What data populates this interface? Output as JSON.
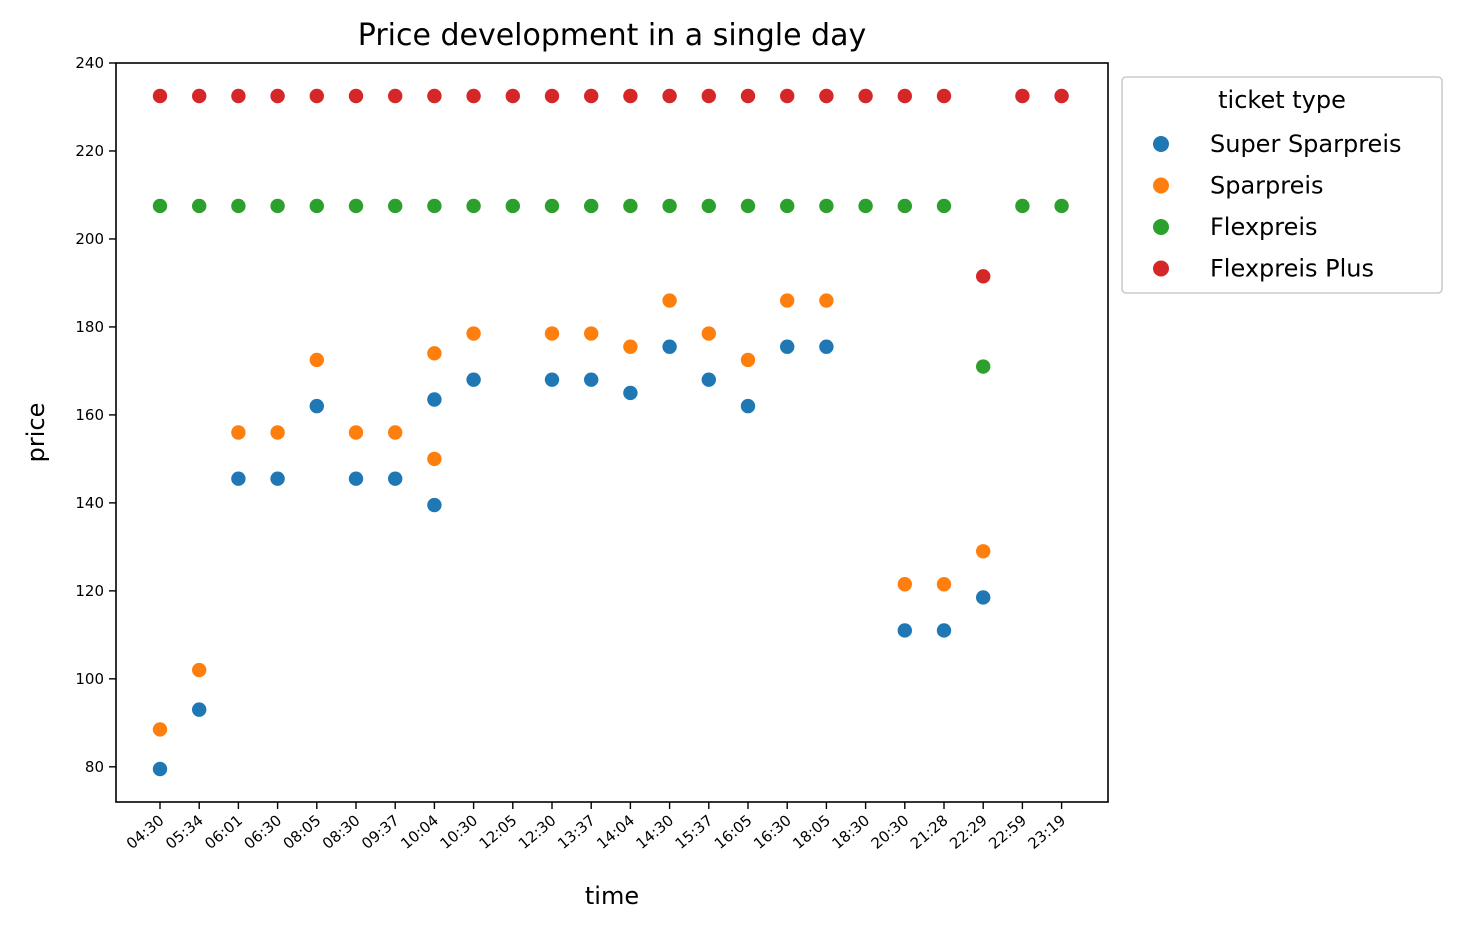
{
  "chart_data": {
    "type": "scatter",
    "title": "Price development in a single day",
    "xlabel": "time",
    "ylabel": "price",
    "ylim": [
      72,
      240
    ],
    "yticks": [
      80,
      100,
      120,
      140,
      160,
      180,
      200,
      220,
      240
    ],
    "grid": false,
    "legend": {
      "title": "ticket type",
      "placement": "outside-top-right"
    },
    "categories": [
      "04:30",
      "05:34",
      "06:01",
      "06:30",
      "08:05",
      "08:30",
      "09:37",
      "10:04",
      "10:30",
      "12:05",
      "12:30",
      "13:37",
      "14:04",
      "14:30",
      "15:37",
      "16:05",
      "16:30",
      "18:05",
      "18:30",
      "20:30",
      "21:28",
      "22:29",
      "22:59",
      "23:19"
    ],
    "series": [
      {
        "name": "Super Sparpreis",
        "color": "#1f77b4",
        "points": [
          {
            "x": "04:30",
            "y": 79.5
          },
          {
            "x": "05:34",
            "y": 93
          },
          {
            "x": "06:01",
            "y": 145.5
          },
          {
            "x": "06:30",
            "y": 145.5
          },
          {
            "x": "08:05",
            "y": 162
          },
          {
            "x": "08:30",
            "y": 145.5
          },
          {
            "x": "09:37",
            "y": 145.5
          },
          {
            "x": "10:04",
            "y": 163.5
          },
          {
            "x": "10:04",
            "y": 139.5
          },
          {
            "x": "10:30",
            "y": 168
          },
          {
            "x": "12:30",
            "y": 168
          },
          {
            "x": "13:37",
            "y": 168
          },
          {
            "x": "14:04",
            "y": 165
          },
          {
            "x": "14:30",
            "y": 175.5
          },
          {
            "x": "15:37",
            "y": 168
          },
          {
            "x": "16:05",
            "y": 162
          },
          {
            "x": "16:30",
            "y": 175.5
          },
          {
            "x": "18:05",
            "y": 175.5
          },
          {
            "x": "20:30",
            "y": 111
          },
          {
            "x": "21:28",
            "y": 111
          },
          {
            "x": "22:29",
            "y": 118.5
          }
        ]
      },
      {
        "name": "Sparpreis",
        "color": "#ff7f0e",
        "points": [
          {
            "x": "04:30",
            "y": 88.5
          },
          {
            "x": "05:34",
            "y": 102
          },
          {
            "x": "06:01",
            "y": 156
          },
          {
            "x": "06:30",
            "y": 156
          },
          {
            "x": "08:05",
            "y": 172.5
          },
          {
            "x": "08:30",
            "y": 156
          },
          {
            "x": "09:37",
            "y": 156
          },
          {
            "x": "10:04",
            "y": 174
          },
          {
            "x": "10:04",
            "y": 150
          },
          {
            "x": "10:30",
            "y": 178.5
          },
          {
            "x": "12:30",
            "y": 178.5
          },
          {
            "x": "13:37",
            "y": 178.5
          },
          {
            "x": "14:04",
            "y": 175.5
          },
          {
            "x": "14:30",
            "y": 186
          },
          {
            "x": "15:37",
            "y": 178.5
          },
          {
            "x": "16:05",
            "y": 172.5
          },
          {
            "x": "16:30",
            "y": 186
          },
          {
            "x": "18:05",
            "y": 186
          },
          {
            "x": "20:30",
            "y": 121.5
          },
          {
            "x": "21:28",
            "y": 121.5
          },
          {
            "x": "22:29",
            "y": 129
          }
        ]
      },
      {
        "name": "Flexpreis",
        "color": "#2ca02c",
        "points": [
          {
            "x": "04:30",
            "y": 207.5
          },
          {
            "x": "05:34",
            "y": 207.5
          },
          {
            "x": "06:01",
            "y": 207.5
          },
          {
            "x": "06:30",
            "y": 207.5
          },
          {
            "x": "08:05",
            "y": 207.5
          },
          {
            "x": "08:30",
            "y": 207.5
          },
          {
            "x": "09:37",
            "y": 207.5
          },
          {
            "x": "10:04",
            "y": 207.5
          },
          {
            "x": "10:30",
            "y": 207.5
          },
          {
            "x": "12:05",
            "y": 207.5
          },
          {
            "x": "12:30",
            "y": 207.5
          },
          {
            "x": "13:37",
            "y": 207.5
          },
          {
            "x": "14:04",
            "y": 207.5
          },
          {
            "x": "14:30",
            "y": 207.5
          },
          {
            "x": "15:37",
            "y": 207.5
          },
          {
            "x": "16:05",
            "y": 207.5
          },
          {
            "x": "16:30",
            "y": 207.5
          },
          {
            "x": "18:05",
            "y": 207.5
          },
          {
            "x": "18:30",
            "y": 207.5
          },
          {
            "x": "20:30",
            "y": 207.5
          },
          {
            "x": "21:28",
            "y": 207.5
          },
          {
            "x": "22:29",
            "y": 171
          },
          {
            "x": "22:59",
            "y": 207.5
          },
          {
            "x": "23:19",
            "y": 207.5
          }
        ]
      },
      {
        "name": "Flexpreis Plus",
        "color": "#d62728",
        "points": [
          {
            "x": "04:30",
            "y": 232.5
          },
          {
            "x": "05:34",
            "y": 232.5
          },
          {
            "x": "06:01",
            "y": 232.5
          },
          {
            "x": "06:30",
            "y": 232.5
          },
          {
            "x": "08:05",
            "y": 232.5
          },
          {
            "x": "08:30",
            "y": 232.5
          },
          {
            "x": "09:37",
            "y": 232.5
          },
          {
            "x": "10:04",
            "y": 232.5
          },
          {
            "x": "10:30",
            "y": 232.5
          },
          {
            "x": "12:05",
            "y": 232.5
          },
          {
            "x": "12:30",
            "y": 232.5
          },
          {
            "x": "13:37",
            "y": 232.5
          },
          {
            "x": "14:04",
            "y": 232.5
          },
          {
            "x": "14:30",
            "y": 232.5
          },
          {
            "x": "15:37",
            "y": 232.5
          },
          {
            "x": "16:05",
            "y": 232.5
          },
          {
            "x": "16:30",
            "y": 232.5
          },
          {
            "x": "18:05",
            "y": 232.5
          },
          {
            "x": "18:30",
            "y": 232.5
          },
          {
            "x": "20:30",
            "y": 232.5
          },
          {
            "x": "21:28",
            "y": 232.5
          },
          {
            "x": "22:29",
            "y": 191.5
          },
          {
            "x": "22:59",
            "y": 232.5
          },
          {
            "x": "23:19",
            "y": 232.5
          }
        ]
      }
    ]
  }
}
